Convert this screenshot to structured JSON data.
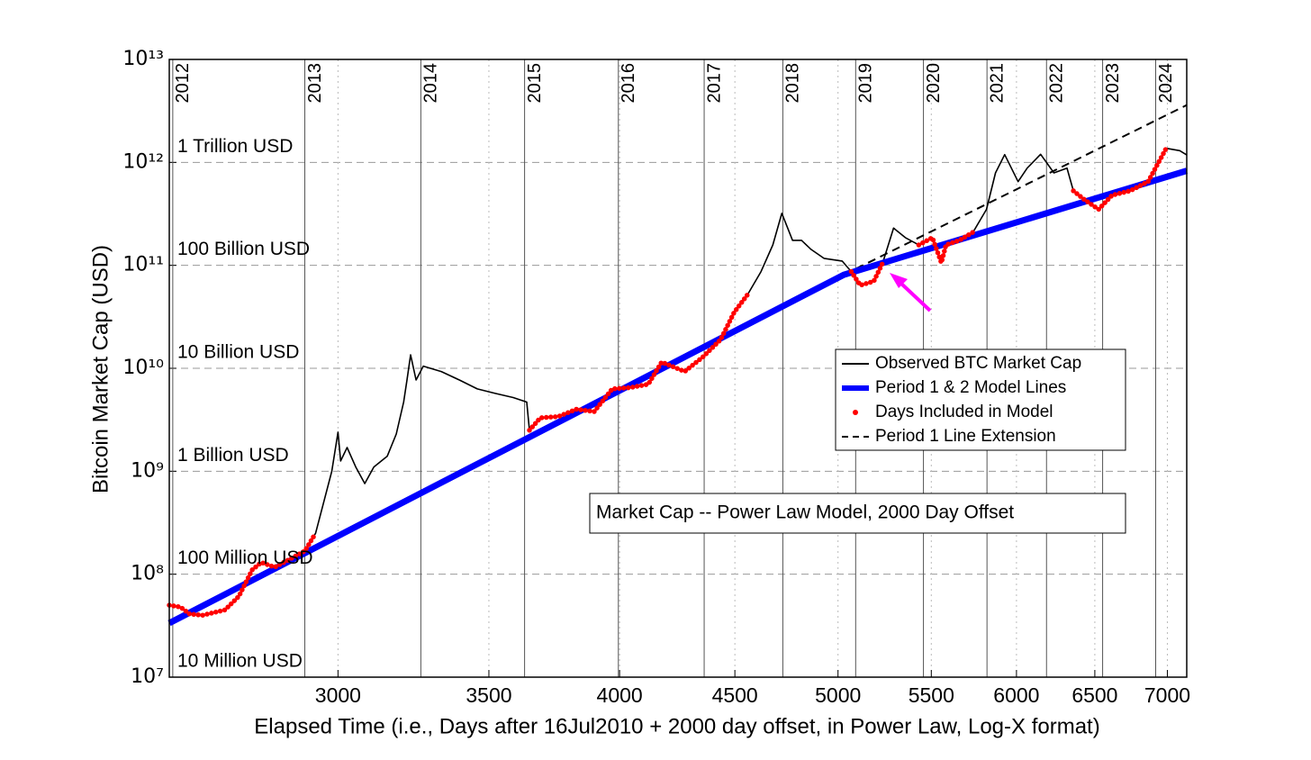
{
  "chart_data": {
    "type": "line",
    "xlabel": "Elapsed Time (i.e., Days after 16Jul2010 + 2000 day offset, in Power Law, Log-X format)",
    "ylabel": "Bitcoin Market Cap (USD)",
    "xscale": "log",
    "yscale": "log",
    "xlim": [
      2525,
      7140
    ],
    "ylim": [
      10000000,
      10000000000000
    ],
    "xticks": [
      3000,
      3500,
      4000,
      4500,
      5000,
      5500,
      6000,
      6500,
      7000
    ],
    "yticks": [
      {
        "value": 10000000,
        "label": "10⁷"
      },
      {
        "value": 100000000,
        "label": "10⁸"
      },
      {
        "value": 1000000000,
        "label": "10⁹"
      },
      {
        "value": 10000000000,
        "label": "10¹⁰"
      },
      {
        "value": 100000000000,
        "label": "10¹¹"
      },
      {
        "value": 1000000000000,
        "label": "10¹²"
      },
      {
        "value": 10000000000000,
        "label": "10¹³"
      }
    ],
    "grid": true,
    "year_lines": [
      {
        "value": 2534,
        "label": "2012"
      },
      {
        "value": 2900,
        "label": "2013"
      },
      {
        "value": 3265,
        "label": "2014"
      },
      {
        "value": 3630,
        "label": "2015"
      },
      {
        "value": 3995,
        "label": "2016"
      },
      {
        "value": 4361,
        "label": "2017"
      },
      {
        "value": 4726,
        "label": "2018"
      },
      {
        "value": 5091,
        "label": "2019"
      },
      {
        "value": 5456,
        "label": "2020"
      },
      {
        "value": 5822,
        "label": "2021"
      },
      {
        "value": 6187,
        "label": "2022"
      },
      {
        "value": 6552,
        "label": "2023"
      },
      {
        "value": 6917,
        "label": "2024"
      }
    ],
    "level_labels": [
      {
        "value": 1000000000000,
        "label": "1 Trillion USD"
      },
      {
        "value": 100000000000,
        "label": "100 Billion USD"
      },
      {
        "value": 10000000000,
        "label": "10 Billion USD"
      },
      {
        "value": 1000000000,
        "label": "1 Billion USD"
      },
      {
        "value": 100000000,
        "label": "100 Million USD"
      },
      {
        "value": 10000000,
        "label": "10 Million USD"
      }
    ],
    "annotations": [
      "Market Cap -- Power Law Model, 2000 Day Offset"
    ],
    "legend": "east",
    "series": [
      {
        "name": "Observed BTC Market Cap",
        "color": "#000000",
        "linestyle": "solid",
        "x": [
          2525,
          2554,
          2578,
          2613,
          2673,
          2711,
          2748,
          2774,
          2812,
          2851,
          2900,
          2932,
          2964,
          2981,
          3000,
          3008,
          3028,
          3055,
          3083,
          3112,
          3155,
          3184,
          3208,
          3219,
          3231,
          3249,
          3273,
          3334,
          3396,
          3459,
          3523,
          3588,
          3638,
          3648,
          3689,
          3757,
          3827,
          3898,
          3970,
          4044,
          4119,
          4176,
          4275,
          4354,
          4435,
          4497,
          4559,
          4622,
          4678,
          4721,
          4773,
          4817,
          4862,
          4929,
          5021,
          5068,
          5115,
          5186,
          5234,
          5292,
          5356,
          5430,
          5506,
          5557,
          5583,
          5660,
          5740,
          5819,
          5873,
          5928,
          6010,
          6066,
          6150,
          6234,
          6318,
          6359,
          6435,
          6525,
          6616,
          6739,
          6864,
          6992,
          7089,
          7140
        ],
        "values": [
          50000000.0,
          48000000.0,
          41000000.0,
          40000000.0,
          45000000.0,
          61000000.0,
          110000000.0,
          130000000.0,
          117000000.0,
          137000000.0,
          168000000.0,
          250000000.0,
          620000000.0,
          1000000000.0,
          2400000000.0,
          1260000000.0,
          1700000000.0,
          1100000000.0,
          760000000.0,
          1100000000.0,
          1400000000.0,
          2300000000.0,
          4700000000.0,
          7700000000.0,
          13500000000.0,
          7700000000.0,
          10500000000.0,
          9300000000.0,
          7700000000.0,
          6300000000.0,
          5700000000.0,
          5200000000.0,
          4700000000.0,
          2500000000.0,
          3300000000.0,
          3400000000.0,
          4000000000.0,
          3800000000.0,
          6300000000.0,
          6500000000.0,
          7000000000.0,
          11500000000.0,
          9300000000.0,
          12800000000.0,
          19000000000.0,
          35000000000.0,
          52000000000.0,
          87000000000.0,
          158000000000.0,
          320000000000.0,
          175000000000.0,
          175000000000.0,
          144000000000.0,
          117000000000.0,
          110000000000.0,
          87000000000.0,
          64000000000.0,
          70000000000.0,
          106000000000.0,
          230000000000.0,
          186000000000.0,
          158000000000.0,
          186000000000.0,
          106000000000.0,
          158000000000.0,
          175000000000.0,
          210000000000.0,
          350000000000.0,
          790000000000.0,
          1190000000000.0,
          650000000000.0,
          880000000000.0,
          1200000000000.0,
          790000000000.0,
          880000000000.0,
          530000000000.0,
          430000000000.0,
          350000000000.0,
          480000000000.0,
          530000000000.0,
          650000000000.0,
          1370000000000.0,
          1300000000000.0,
          1180000000000.0
        ]
      },
      {
        "name": "Period 1 & 2 Model Lines",
        "color": "#0000ff",
        "linestyle": "thick",
        "x": [
          2525,
          5030,
          7140
        ],
        "values": [
          33500000.0,
          81000000000.0,
          830000000000.0
        ]
      },
      {
        "name": "Days Included in Model",
        "color": "#ff0000",
        "linestyle": "dots",
        "x": [
          2525,
          2554,
          2578,
          2613,
          2673,
          2711,
          2748,
          2774,
          2812,
          2851,
          2900,
          2932,
          null,
          3648,
          3689,
          3757,
          3827,
          3898,
          3970,
          4044,
          4119,
          4176,
          4275,
          4354,
          4435,
          4497,
          4559,
          null,
          5068,
          5115,
          5186,
          5234,
          null,
          5430,
          5506,
          5557,
          5583,
          5660,
          5740,
          null,
          6359,
          6435,
          6525,
          6616,
          6739,
          6864,
          6992
        ],
        "values": [
          50000000.0,
          48000000.0,
          41000000.0,
          40000000.0,
          45000000.0,
          61000000.0,
          110000000.0,
          130000000.0,
          117000000.0,
          137000000.0,
          168000000.0,
          250000000.0,
          null,
          2500000000.0,
          3300000000.0,
          3400000000.0,
          4000000000.0,
          3800000000.0,
          6300000000.0,
          6500000000.0,
          7000000000.0,
          11500000000.0,
          9300000000.0,
          12800000000.0,
          19000000000.0,
          35000000000.0,
          52000000000.0,
          null,
          87000000000.0,
          64000000000.0,
          70000000000.0,
          106000000000.0,
          null,
          158000000000.0,
          186000000000.0,
          106000000000.0,
          158000000000.0,
          175000000000.0,
          210000000000.0,
          null,
          530000000000.0,
          430000000000.0,
          350000000000.0,
          480000000000.0,
          530000000000.0,
          650000000000.0,
          1370000000000.0
        ]
      },
      {
        "name": "Period 1 Line Extension",
        "color": "#000000",
        "linestyle": "dashed",
        "x": [
          5030,
          7140
        ],
        "values": [
          81000000000.0,
          3600000000000.0
        ]
      }
    ]
  }
}
